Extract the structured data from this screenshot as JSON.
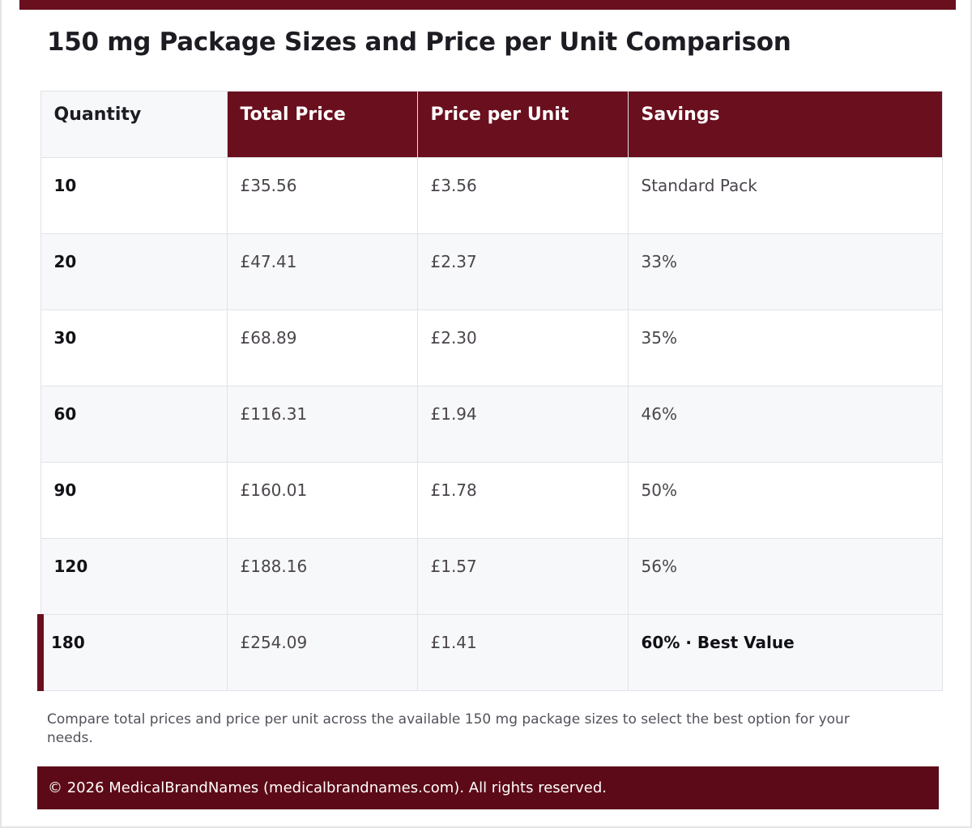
{
  "title": "150 mg Package Sizes and Price per Unit Comparison",
  "table": {
    "headers": {
      "quantity": "Quantity",
      "total_price": "Total Price",
      "price_per_unit": "Price per Unit",
      "savings": "Savings"
    },
    "rows": [
      {
        "quantity": "10",
        "total_price": "£35.56",
        "price_per_unit": "£3.56",
        "savings": "Standard Pack"
      },
      {
        "quantity": "20",
        "total_price": "£47.41",
        "price_per_unit": "£2.37",
        "savings": "33%"
      },
      {
        "quantity": "30",
        "total_price": "£68.89",
        "price_per_unit": "£2.30",
        "savings": "35%"
      },
      {
        "quantity": "60",
        "total_price": "£116.31",
        "price_per_unit": "£1.94",
        "savings": "46%"
      },
      {
        "quantity": "90",
        "total_price": "£160.01",
        "price_per_unit": "£1.78",
        "savings": "50%"
      },
      {
        "quantity": "120",
        "total_price": "£188.16",
        "price_per_unit": "£1.57",
        "savings": "56%"
      },
      {
        "quantity": "180",
        "total_price": "£254.09",
        "price_per_unit": "£1.41",
        "savings": "60% · Best Value"
      }
    ]
  },
  "note": "Compare total prices and price per unit across the available 150 mg package sizes to select the best option for your needs.",
  "footer": "© 2026 MedicalBrandNames (medicalbrandnames.com). All rights reserved.",
  "colors": {
    "accent": "#6a0f1e",
    "footer_bg": "#5c0a17",
    "row_alt": "#f7f8fa",
    "border": "#e2e2e8"
  }
}
